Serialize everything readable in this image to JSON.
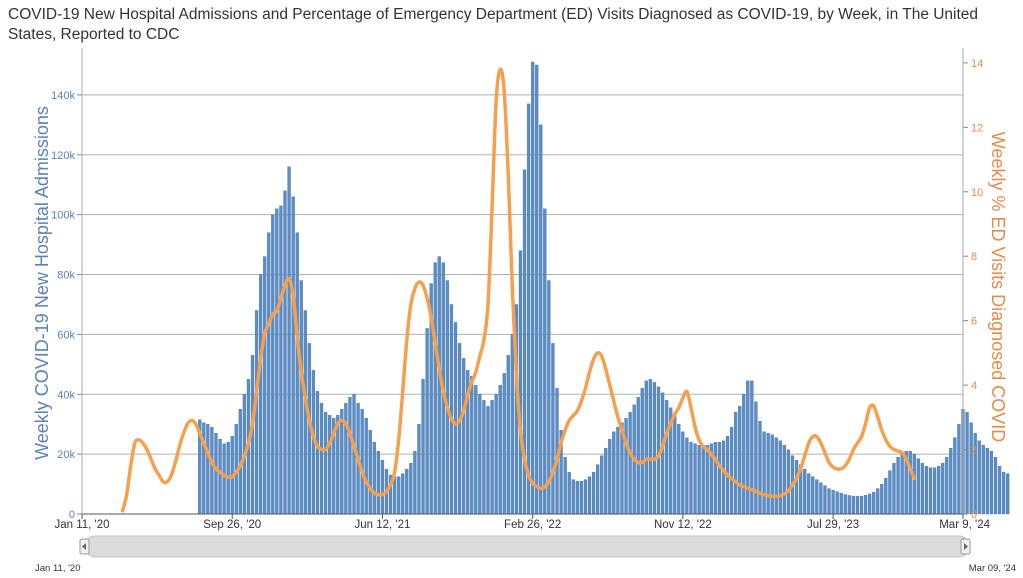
{
  "chart_data": {
    "type": "bar+line",
    "title": "COVID-19 New Hospital Admissions and Percentage of Emergency Department (ED) Visits Diagnosed as COVID-19, by Week, in The United States, Reported to CDC",
    "y_left_label": "Weekly COVID-19 New Hospital Admissions",
    "y_right_label": "Weekly % ED Visits Diagnosed COVID",
    "y_left_ticks": [
      "0",
      "20k",
      "40k",
      "60k",
      "80k",
      "100k",
      "120k",
      "140k"
    ],
    "y_right_ticks": [
      "0",
      "2",
      "4",
      "6",
      "8",
      "10",
      "12",
      "14"
    ],
    "y_left_range": [
      0,
      155000
    ],
    "y_right_range": [
      0,
      14.4
    ],
    "x_range": [
      "2020-01-11",
      "2024-03-09"
    ],
    "x_ticks": [
      "Jan 11, '20",
      "Sep 26, '20",
      "Jun 12, '21",
      "Feb 26, '22",
      "Nov 12, '22",
      "Jul 29, '23",
      "Mar 9, '24"
    ],
    "navigator": {
      "start_label": "Jan 11, '20",
      "end_label": "Mar 09, '24"
    },
    "colors": {
      "bars": "#5b8cc4",
      "bar_edge": "#3d6ea6",
      "line": "#f5a04f",
      "grid": "#b0b0b0",
      "left_axis_text": "#5b82b8",
      "right_axis_text": "#e8894a"
    },
    "series": [
      {
        "name": "Weekly COVID-19 New Hospital Admissions",
        "kind": "bar",
        "start_date": "2020-08-01",
        "interval_days": 7,
        "values": [
          31500,
          30500,
          30000,
          29000,
          27000,
          25000,
          23500,
          24000,
          26000,
          30000,
          35000,
          40000,
          45000,
          53000,
          68000,
          80000,
          86000,
          94000,
          100000,
          102000,
          103000,
          108000,
          116000,
          106000,
          94000,
          78000,
          68000,
          57000,
          48000,
          41000,
          37000,
          34000,
          33000,
          32000,
          33000,
          35000,
          37000,
          39000,
          40000,
          37000,
          35000,
          32000,
          28000,
          24000,
          21000,
          18000,
          15000,
          13000,
          12500,
          12500,
          13500,
          15000,
          17000,
          21000,
          30000,
          45000,
          62000,
          77000,
          84000,
          86000,
          84000,
          78000,
          70000,
          64000,
          57000,
          52000,
          48000,
          46000,
          43000,
          40000,
          38000,
          36000,
          38000,
          40000,
          43000,
          47000,
          53000,
          60000,
          70000,
          88000,
          115000,
          137000,
          151000,
          150000,
          130000,
          102000,
          78000,
          57000,
          42000,
          28000,
          19000,
          14000,
          11500,
          11000,
          11000,
          11500,
          12500,
          14000,
          16500,
          19500,
          22000,
          25000,
          27500,
          29000,
          30500,
          32000,
          34000,
          36500,
          39000,
          42000,
          44500,
          45000,
          44000,
          42500,
          40500,
          38000,
          35500,
          33000,
          30000,
          27500,
          25500,
          24000,
          23500,
          23000,
          23000,
          23000,
          23500,
          24000,
          24000,
          24500,
          26000,
          29000,
          34000,
          36000,
          40000,
          44500,
          44500,
          37500,
          31000,
          27500,
          27000,
          26500,
          25500,
          24500,
          23000,
          21500,
          19500,
          18000,
          16500,
          15000,
          13500,
          12500,
          11500,
          10500,
          9500,
          8500,
          8000,
          7500,
          7000,
          6500,
          6200,
          6000,
          5900,
          6000,
          6300,
          6700,
          7300,
          8500,
          10000,
          12000,
          14500,
          17000,
          19000,
          20500,
          21000,
          21000,
          20000,
          18500,
          17000,
          16000,
          15500,
          15500,
          16000,
          17000,
          19000,
          22000,
          25500,
          30000,
          35000,
          34000,
          30500,
          27000,
          24500,
          23000,
          22000,
          21000,
          19000,
          16000,
          14000,
          13500
        ]
      },
      {
        "name": "Weekly % ED Visits Diagnosed COVID",
        "kind": "line",
        "points": [
          [
            "2020-03-21",
            0.1
          ],
          [
            "2020-03-28",
            0.6
          ],
          [
            "2020-04-04",
            1.5
          ],
          [
            "2020-04-11",
            2.2
          ],
          [
            "2020-04-18",
            2.3
          ],
          [
            "2020-04-25",
            2.2
          ],
          [
            "2020-05-02",
            2.0
          ],
          [
            "2020-05-09",
            1.7
          ],
          [
            "2020-05-16",
            1.4
          ],
          [
            "2020-05-23",
            1.2
          ],
          [
            "2020-05-30",
            1.0
          ],
          [
            "2020-06-06",
            1.0
          ],
          [
            "2020-06-13",
            1.2
          ],
          [
            "2020-06-20",
            1.6
          ],
          [
            "2020-06-27",
            2.1
          ],
          [
            "2020-07-04",
            2.5
          ],
          [
            "2020-07-11",
            2.8
          ],
          [
            "2020-07-18",
            2.9
          ],
          [
            "2020-07-25",
            2.8
          ],
          [
            "2020-08-01",
            2.5
          ],
          [
            "2020-08-08",
            2.2
          ],
          [
            "2020-08-15",
            1.9
          ],
          [
            "2020-08-22",
            1.6
          ],
          [
            "2020-08-29",
            1.4
          ],
          [
            "2020-09-05",
            1.3
          ],
          [
            "2020-09-12",
            1.2
          ],
          [
            "2020-09-19",
            1.15
          ],
          [
            "2020-09-26",
            1.15
          ],
          [
            "2020-10-03",
            1.3
          ],
          [
            "2020-10-10",
            1.5
          ],
          [
            "2020-10-17",
            1.8
          ],
          [
            "2020-10-24",
            2.2
          ],
          [
            "2020-10-31",
            2.8
          ],
          [
            "2020-11-07",
            3.8
          ],
          [
            "2020-11-14",
            4.8
          ],
          [
            "2020-11-21",
            5.6
          ],
          [
            "2020-11-28",
            5.9
          ],
          [
            "2020-12-05",
            6.2
          ],
          [
            "2020-12-12",
            6.3
          ],
          [
            "2020-12-19",
            6.7
          ],
          [
            "2020-12-26",
            7.1
          ],
          [
            "2021-01-02",
            7.3
          ],
          [
            "2021-01-09",
            6.8
          ],
          [
            "2021-01-16",
            5.5
          ],
          [
            "2021-01-23",
            4.4
          ],
          [
            "2021-01-30",
            3.6
          ],
          [
            "2021-02-06",
            2.9
          ],
          [
            "2021-02-13",
            2.4
          ],
          [
            "2021-02-20",
            2.1
          ],
          [
            "2021-02-27",
            2.0
          ],
          [
            "2021-03-06",
            2.0
          ],
          [
            "2021-03-13",
            2.2
          ],
          [
            "2021-03-20",
            2.5
          ],
          [
            "2021-03-27",
            2.8
          ],
          [
            "2021-04-03",
            2.9
          ],
          [
            "2021-04-10",
            2.8
          ],
          [
            "2021-04-17",
            2.5
          ],
          [
            "2021-04-24",
            2.1
          ],
          [
            "2021-05-01",
            1.7
          ],
          [
            "2021-05-08",
            1.3
          ],
          [
            "2021-05-15",
            1.0
          ],
          [
            "2021-05-22",
            0.8
          ],
          [
            "2021-05-29",
            0.65
          ],
          [
            "2021-06-05",
            0.6
          ],
          [
            "2021-06-12",
            0.6
          ],
          [
            "2021-06-19",
            0.7
          ],
          [
            "2021-06-26",
            0.9
          ],
          [
            "2021-07-03",
            1.3
          ],
          [
            "2021-07-10",
            2.3
          ],
          [
            "2021-07-17",
            3.8
          ],
          [
            "2021-07-24",
            5.4
          ],
          [
            "2021-07-31",
            6.5
          ],
          [
            "2021-08-07",
            7.0
          ],
          [
            "2021-08-14",
            7.2
          ],
          [
            "2021-08-21",
            7.1
          ],
          [
            "2021-08-28",
            6.7
          ],
          [
            "2021-09-04",
            6.1
          ],
          [
            "2021-09-11",
            5.3
          ],
          [
            "2021-09-18",
            4.5
          ],
          [
            "2021-09-25",
            3.8
          ],
          [
            "2021-10-02",
            3.3
          ],
          [
            "2021-10-09",
            2.95
          ],
          [
            "2021-10-16",
            2.8
          ],
          [
            "2021-10-23",
            2.9
          ],
          [
            "2021-10-30",
            3.2
          ],
          [
            "2021-11-06",
            3.7
          ],
          [
            "2021-11-13",
            4.1
          ],
          [
            "2021-11-20",
            4.4
          ],
          [
            "2021-11-27",
            4.9
          ],
          [
            "2021-12-04",
            5.4
          ],
          [
            "2021-12-11",
            6.5
          ],
          [
            "2021-12-18",
            9.5
          ],
          [
            "2021-12-25",
            12.8
          ],
          [
            "2022-01-01",
            13.8
          ],
          [
            "2022-01-08",
            13.1
          ],
          [
            "2022-01-15",
            10.5
          ],
          [
            "2022-01-22",
            7.0
          ],
          [
            "2022-01-29",
            4.3
          ],
          [
            "2022-02-05",
            2.6
          ],
          [
            "2022-02-12",
            1.7
          ],
          [
            "2022-02-19",
            1.2
          ],
          [
            "2022-02-26",
            0.95
          ],
          [
            "2022-03-05",
            0.85
          ],
          [
            "2022-03-12",
            0.8
          ],
          [
            "2022-03-19",
            0.85
          ],
          [
            "2022-03-26",
            1.0
          ],
          [
            "2022-04-02",
            1.3
          ],
          [
            "2022-04-09",
            1.7
          ],
          [
            "2022-04-16",
            2.2
          ],
          [
            "2022-04-23",
            2.6
          ],
          [
            "2022-04-30",
            2.9
          ],
          [
            "2022-05-07",
            3.05
          ],
          [
            "2022-05-14",
            3.2
          ],
          [
            "2022-05-21",
            3.5
          ],
          [
            "2022-05-28",
            3.9
          ],
          [
            "2022-06-04",
            4.4
          ],
          [
            "2022-06-11",
            4.8
          ],
          [
            "2022-06-18",
            5.0
          ],
          [
            "2022-06-25",
            4.9
          ],
          [
            "2022-07-02",
            4.5
          ],
          [
            "2022-07-09",
            4.0
          ],
          [
            "2022-07-16",
            3.5
          ],
          [
            "2022-07-23",
            3.0
          ],
          [
            "2022-07-30",
            2.6
          ],
          [
            "2022-08-06",
            2.2
          ],
          [
            "2022-08-13",
            1.9
          ],
          [
            "2022-08-20",
            1.7
          ],
          [
            "2022-08-27",
            1.6
          ],
          [
            "2022-09-03",
            1.6
          ],
          [
            "2022-09-10",
            1.7
          ],
          [
            "2022-09-17",
            1.7
          ],
          [
            "2022-09-24",
            1.7
          ],
          [
            "2022-10-01",
            1.8
          ],
          [
            "2022-10-08",
            2.1
          ],
          [
            "2022-10-15",
            2.5
          ],
          [
            "2022-10-22",
            2.8
          ],
          [
            "2022-10-29",
            3.1
          ],
          [
            "2022-11-05",
            3.3
          ],
          [
            "2022-11-12",
            3.6
          ],
          [
            "2022-11-19",
            3.8
          ],
          [
            "2022-11-26",
            3.3
          ],
          [
            "2022-12-03",
            2.7
          ],
          [
            "2022-12-10",
            2.3
          ],
          [
            "2022-12-17",
            2.1
          ],
          [
            "2022-12-24",
            2.0
          ],
          [
            "2022-12-31",
            1.85
          ],
          [
            "2023-01-07",
            1.7
          ],
          [
            "2023-01-14",
            1.5
          ],
          [
            "2023-01-21",
            1.35
          ],
          [
            "2023-01-28",
            1.2
          ],
          [
            "2023-02-04",
            1.1
          ],
          [
            "2023-02-11",
            1.0
          ],
          [
            "2023-02-18",
            0.9
          ],
          [
            "2023-02-25",
            0.85
          ],
          [
            "2023-03-04",
            0.8
          ],
          [
            "2023-03-11",
            0.75
          ],
          [
            "2023-03-18",
            0.7
          ],
          [
            "2023-03-25",
            0.65
          ],
          [
            "2023-04-01",
            0.6
          ],
          [
            "2023-04-08",
            0.57
          ],
          [
            "2023-04-15",
            0.55
          ],
          [
            "2023-04-22",
            0.55
          ],
          [
            "2023-04-29",
            0.57
          ],
          [
            "2023-05-06",
            0.62
          ],
          [
            "2023-05-13",
            0.72
          ],
          [
            "2023-05-20",
            0.9
          ],
          [
            "2023-05-27",
            1.1
          ],
          [
            "2023-06-03",
            1.4
          ],
          [
            "2023-06-10",
            1.8
          ],
          [
            "2023-06-17",
            2.2
          ],
          [
            "2023-06-24",
            2.4
          ],
          [
            "2023-07-01",
            2.4
          ],
          [
            "2023-07-08",
            2.2
          ],
          [
            "2023-07-15",
            1.9
          ],
          [
            "2023-07-22",
            1.6
          ],
          [
            "2023-07-29",
            1.45
          ],
          [
            "2023-08-05",
            1.4
          ],
          [
            "2023-08-12",
            1.4
          ],
          [
            "2023-08-19",
            1.5
          ],
          [
            "2023-08-26",
            1.7
          ],
          [
            "2023-09-02",
            2.0
          ],
          [
            "2023-09-09",
            2.2
          ],
          [
            "2023-09-16",
            2.4
          ],
          [
            "2023-09-23",
            2.8
          ],
          [
            "2023-09-30",
            3.3
          ],
          [
            "2023-10-07",
            3.35
          ],
          [
            "2023-10-14",
            3.0
          ],
          [
            "2023-10-21",
            2.6
          ],
          [
            "2023-10-28",
            2.3
          ],
          [
            "2023-11-04",
            2.1
          ],
          [
            "2023-11-11",
            2.0
          ],
          [
            "2023-11-18",
            1.95
          ],
          [
            "2023-11-25",
            1.9
          ],
          [
            "2023-12-02",
            1.7
          ],
          [
            "2023-12-09",
            1.4
          ],
          [
            "2023-12-16",
            1.1
          ]
        ]
      }
    ]
  }
}
